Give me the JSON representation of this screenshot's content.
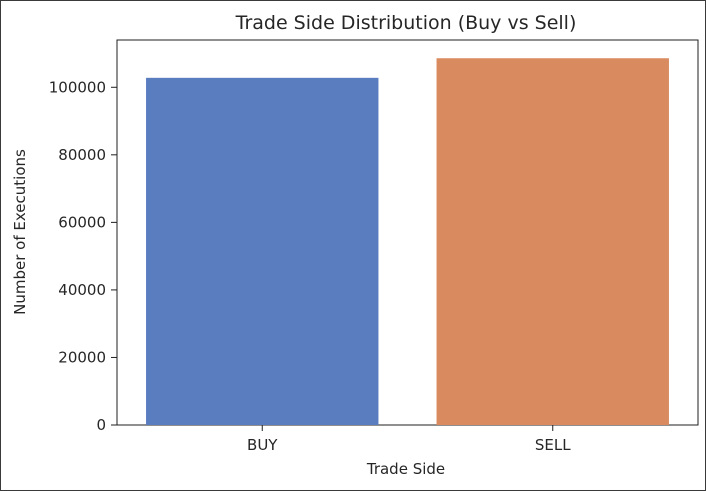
{
  "chart_data": {
    "type": "bar",
    "title": "Trade Side Distribution (Buy vs Sell)",
    "xlabel": "Trade Side",
    "ylabel": "Number of Executions",
    "categories": [
      "BUY",
      "SELL"
    ],
    "values": [
      102800,
      108600
    ],
    "ylim": [
      0,
      114000
    ],
    "yticks": [
      0,
      20000,
      40000,
      60000,
      80000,
      100000
    ],
    "ytick_labels": [
      "0",
      "20000",
      "40000",
      "60000",
      "80000",
      "100000"
    ],
    "colors": [
      "#5a7dc0",
      "#d98a5f"
    ],
    "grid": false,
    "legend": "none"
  }
}
